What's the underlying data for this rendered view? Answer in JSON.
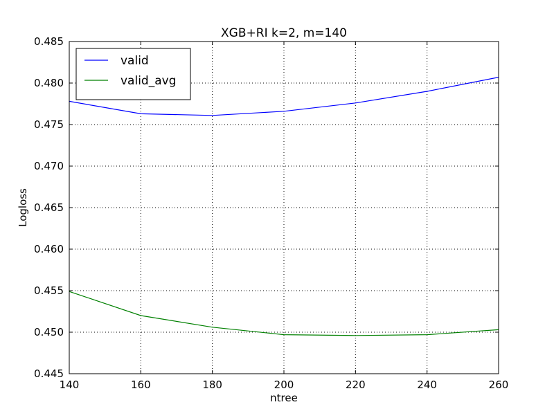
{
  "chart_data": {
    "type": "line",
    "title": "XGB+RI k=2, m=140",
    "xlabel": "ntree",
    "ylabel": "Logloss",
    "x": [
      140,
      160,
      180,
      200,
      220,
      240,
      260
    ],
    "xlim": [
      140,
      260
    ],
    "ylim": [
      0.445,
      0.485
    ],
    "xticks": [
      "140",
      "160",
      "180",
      "200",
      "220",
      "240",
      "260"
    ],
    "yticks": [
      "0.445",
      "0.450",
      "0.455",
      "0.460",
      "0.465",
      "0.470",
      "0.475",
      "0.480",
      "0.485"
    ],
    "grid": true,
    "legend_position": "top-left",
    "series": [
      {
        "name": "valid",
        "color": "#0000ff",
        "values": [
          0.4778,
          0.4763,
          0.4761,
          0.4766,
          0.4776,
          0.479,
          0.4807
        ]
      },
      {
        "name": "valid_avg",
        "color": "#008000",
        "values": [
          0.4549,
          0.452,
          0.4506,
          0.4497,
          0.4496,
          0.4497,
          0.4503
        ]
      }
    ]
  }
}
